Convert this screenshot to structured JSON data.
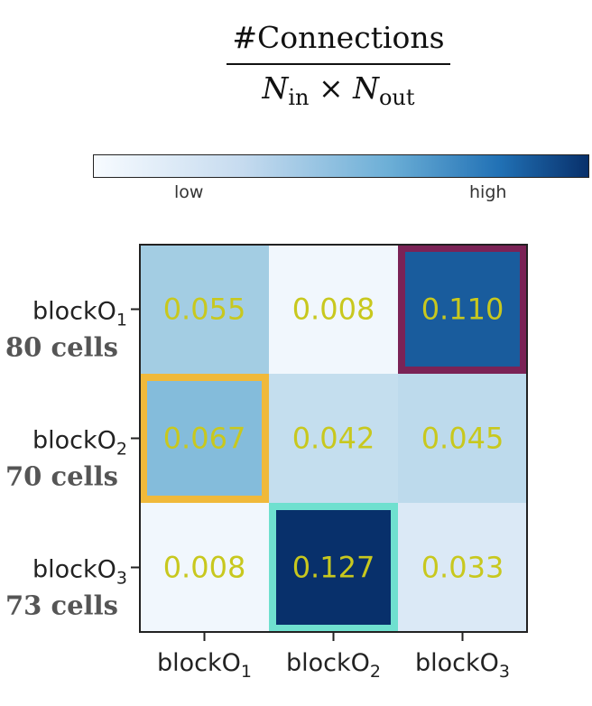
{
  "colors": {
    "cmap_low": "#f7fbff",
    "cmap_high": "#08306b",
    "value_text": "#c8c81e",
    "highlight_purple": "#7b2356",
    "highlight_yellow": "#f0b93a",
    "highlight_teal": "#6fe0cf"
  },
  "title": {
    "numerator": "#Connections",
    "den_n_in": "N",
    "den_in_sub": "in",
    "den_times": "×",
    "den_n_out": "N",
    "den_out_sub": "out"
  },
  "colorbar": {
    "low_label": "low",
    "high_label": "high"
  },
  "chart_data": {
    "type": "heatmap",
    "rows": [
      {
        "label": "blockO",
        "sub": "1",
        "cells_label": "80 cells"
      },
      {
        "label": "blockO",
        "sub": "2",
        "cells_label": "70 cells"
      },
      {
        "label": "blockO",
        "sub": "3",
        "cells_label": "73 cells"
      }
    ],
    "columns": [
      {
        "label": "blockO",
        "sub": "1"
      },
      {
        "label": "blockO",
        "sub": "2"
      },
      {
        "label": "blockO",
        "sub": "3"
      }
    ],
    "values": [
      [
        "0.055",
        "0.008",
        "0.110"
      ],
      [
        "0.067",
        "0.042",
        "0.045"
      ],
      [
        "0.008",
        "0.127",
        "0.033"
      ]
    ],
    "value_range": [
      0,
      0.127
    ],
    "highlights": [
      {
        "row": 0,
        "col": 2,
        "color": "#7b2356"
      },
      {
        "row": 1,
        "col": 0,
        "color": "#f0b93a"
      },
      {
        "row": 2,
        "col": 1,
        "color": "#6fe0cf"
      }
    ]
  }
}
